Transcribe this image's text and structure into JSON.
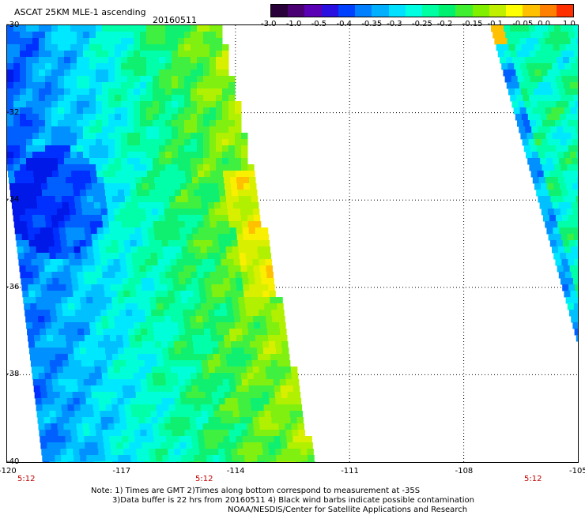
{
  "header": {
    "title": "ASCAT 25KM MLE-1 ascending",
    "date": "20160511"
  },
  "colorbar": {
    "colors": [
      "#2a003a",
      "#4a0073",
      "#5a00b5",
      "#2a10e0",
      "#0040ff",
      "#0080ff",
      "#00b0ff",
      "#00e0ff",
      "#00ffe0",
      "#00ffa0",
      "#00f070",
      "#40f030",
      "#80f000",
      "#c0f000",
      "#ffff00",
      "#ffc000",
      "#ff8000",
      "#ff3000"
    ],
    "labels": [
      "-3.0",
      "-1.0",
      "-0.5",
      "-0.4",
      "-0.35",
      "-0.3",
      "-0.25",
      "-0.2",
      "-0.15",
      "-0.1",
      "-0.05",
      "0.0",
      "1.0"
    ]
  },
  "axes": {
    "y_labels": [
      "-30",
      "-32",
      "-34",
      "-36",
      "-38",
      "-40"
    ],
    "x_labels": [
      "-120",
      "-117",
      "-114",
      "-111",
      "-108",
      "-105"
    ],
    "time_labels": [
      "5:12",
      "5:12",
      "5:12"
    ]
  },
  "map": {
    "lon_range": [
      -120,
      -105
    ],
    "lat_range": [
      -40,
      -30
    ]
  },
  "footer": {
    "line1": "Note: 1) Times are GMT 2)Times along bottom correspond to measurement at -35S",
    "line2": "3)Data buffer is 22 hrs from 20160511 4) Black wind barbs indicate possible contamination",
    "line3": "NOAA/NESDIS/Center for Satellite Applications and Research"
  }
}
